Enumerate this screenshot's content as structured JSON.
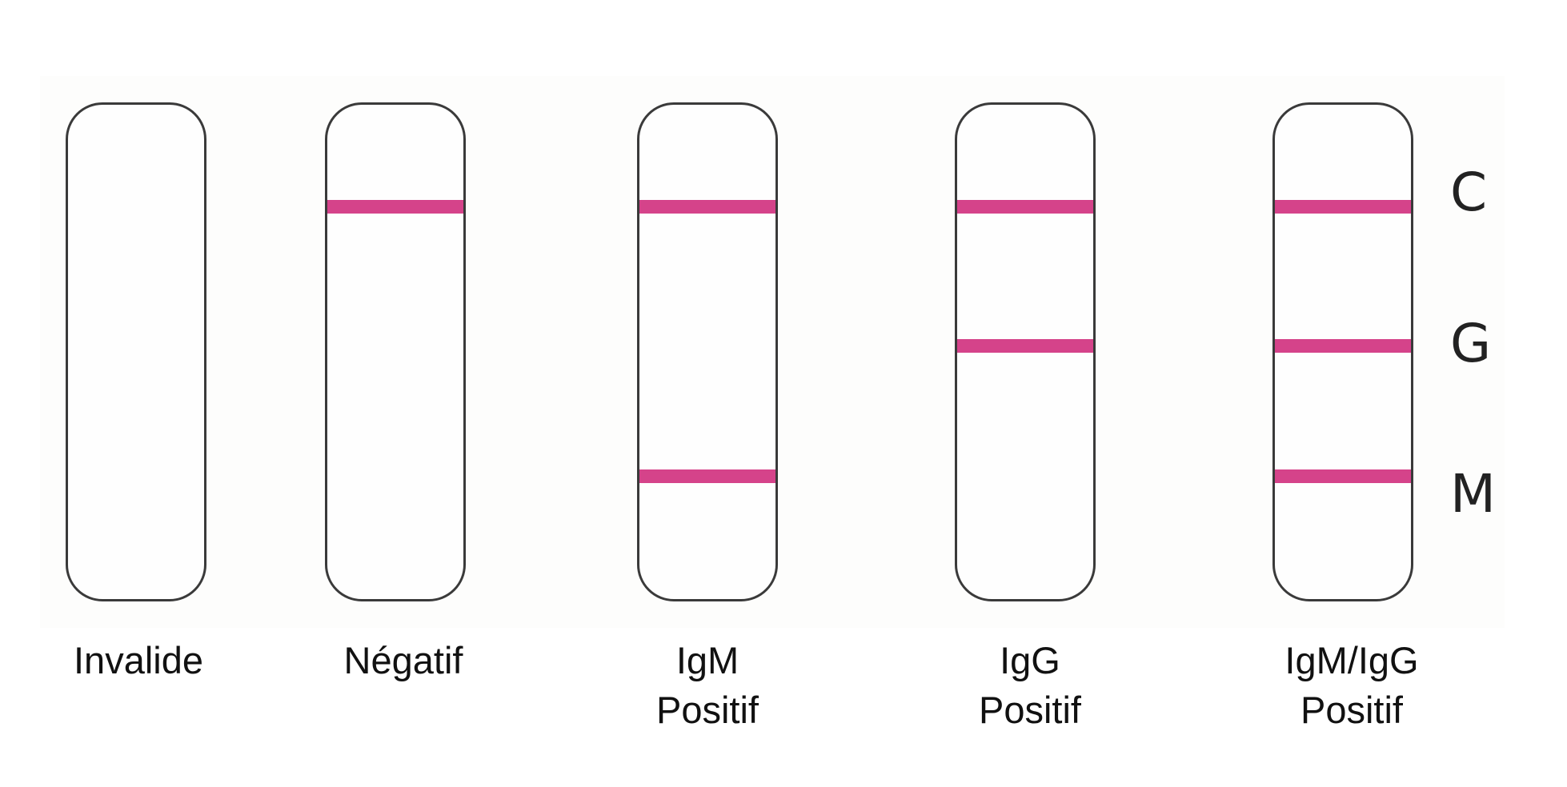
{
  "band_color": "#d5438a",
  "zone_labels": {
    "c": "C",
    "g": "G",
    "m": "M"
  },
  "strips": [
    {
      "caption_line1": "Invalide",
      "caption_line2": "",
      "bands": []
    },
    {
      "caption_line1": "Négatif",
      "caption_line2": "",
      "bands": [
        "C"
      ]
    },
    {
      "caption_line1": "IgM",
      "caption_line2": "Positif",
      "bands": [
        "C",
        "M"
      ]
    },
    {
      "caption_line1": "IgG",
      "caption_line2": "Positif",
      "bands": [
        "C",
        "G"
      ]
    },
    {
      "caption_line1": "IgM/IgG",
      "caption_line2": "Positif",
      "bands": [
        "C",
        "G",
        "M"
      ]
    }
  ]
}
